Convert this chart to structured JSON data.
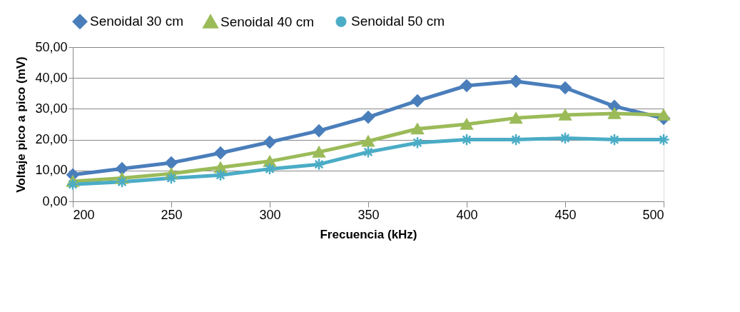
{
  "chart_data": {
    "type": "line",
    "xlabel": "Frecuencia (kHz)",
    "ylabel": "Voltaje pico a pico (mV)",
    "x": [
      200,
      225,
      250,
      275,
      300,
      325,
      350,
      375,
      400,
      425,
      450,
      475,
      500
    ],
    "series": [
      {
        "name": "Senoidal 30 cm",
        "color": "#4a7ebb",
        "marker": "diamond",
        "values": [
          8.6,
          10.6,
          12.5,
          15.7,
          19.2,
          22.9,
          27.3,
          32.6,
          37.5,
          38.9,
          36.8,
          30.8,
          26.9
        ]
      },
      {
        "name": "Senoidal 40 cm",
        "color": "#9bbb59",
        "marker": "triangle",
        "values": [
          6.5,
          7.5,
          9,
          11,
          13,
          16,
          19.5,
          23.5,
          25,
          27,
          28,
          28.5,
          28
        ]
      },
      {
        "name": "Senoidal 50 cm",
        "color": "#4bacc6",
        "marker": "cross",
        "values": [
          5.5,
          6.3,
          7.5,
          8.5,
          10.5,
          12,
          16,
          19,
          20,
          20,
          20.5,
          20,
          20
        ]
      }
    ],
    "xlim": [
      200,
      500
    ],
    "xticks": [
      200,
      250,
      300,
      350,
      400,
      450,
      500
    ],
    "ylim": [
      0,
      50
    ],
    "yticks": [
      {
        "value": 0,
        "label": "0,00"
      },
      {
        "value": 10,
        "label": "10,00"
      },
      {
        "value": 20,
        "label": "20,00"
      },
      {
        "value": 30,
        "label": "30,00"
      },
      {
        "value": 40,
        "label": "40,00"
      },
      {
        "value": 50,
        "label": "50,00"
      }
    ],
    "grid": "y",
    "legend": "top",
    "line_style": "solid"
  }
}
